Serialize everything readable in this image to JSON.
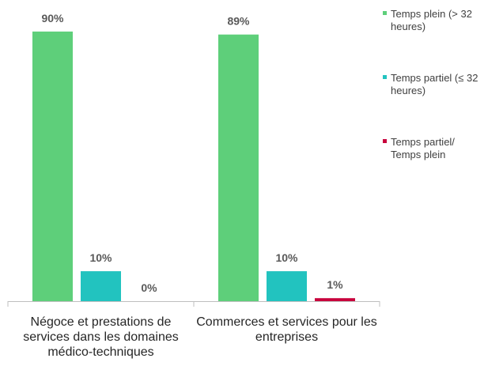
{
  "chart_data": {
    "type": "bar",
    "categories": [
      "Négoce et prestations de services dans les domaines médico-techniques",
      "Commerces et services pour les entreprises"
    ],
    "series": [
      {
        "name": "Temps plein (> 32 heures)",
        "color": "#5ecf7a",
        "values": [
          90,
          89
        ],
        "value_labels": [
          "90%",
          "89%"
        ]
      },
      {
        "name": "Temps partiel (≤ 32 heures)",
        "color": "#22c3bf",
        "values": [
          10,
          10
        ],
        "value_labels": [
          "10%",
          "10%"
        ]
      },
      {
        "name": "Temps partiel/ Temps plein",
        "color": "#c8003c",
        "values": [
          0,
          1
        ],
        "value_labels": [
          "0%",
          "1%"
        ]
      }
    ],
    "ylim": [
      0,
      100
    ]
  }
}
